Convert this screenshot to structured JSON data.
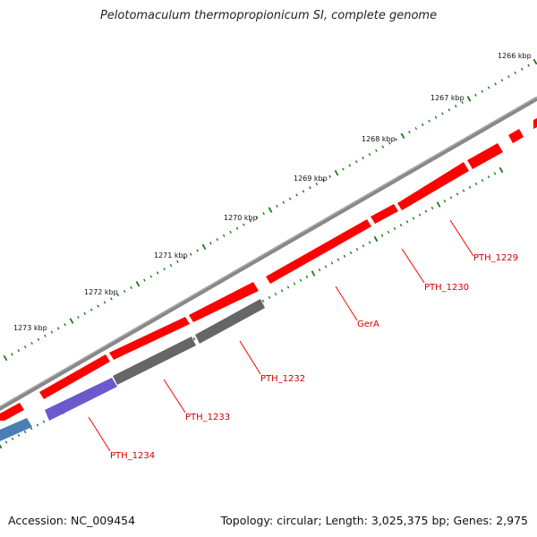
{
  "title": "Pelotomaculum thermopropionicum SI, complete genome",
  "footer": {
    "accession": "Accession: NC_009454",
    "topology": "Topology: circular; Length: 3,025,375 bp; Genes: 2,975"
  },
  "colors": {
    "background": "#ffffff",
    "backbone": "#888888",
    "cds_red": "#ff0000",
    "cds_gray": "#666666",
    "cds_purple": "#6a5acd",
    "cds_blue": "#4a7fb5",
    "tick_green": "#1a7a1a",
    "label_red": "#cc0000"
  },
  "kbp_labels": [
    "1266 kbp",
    "1267 kbp",
    "1268 kbp",
    "1269 kbp",
    "1270 kbp",
    "1271 kbp",
    "1272 kbp",
    "1273 kbp"
  ],
  "gene_labels": [
    "PTH_1229",
    "PTH_1230",
    "GerA",
    "PTH_1232",
    "PTH_1233",
    "PTH_1234"
  ]
}
